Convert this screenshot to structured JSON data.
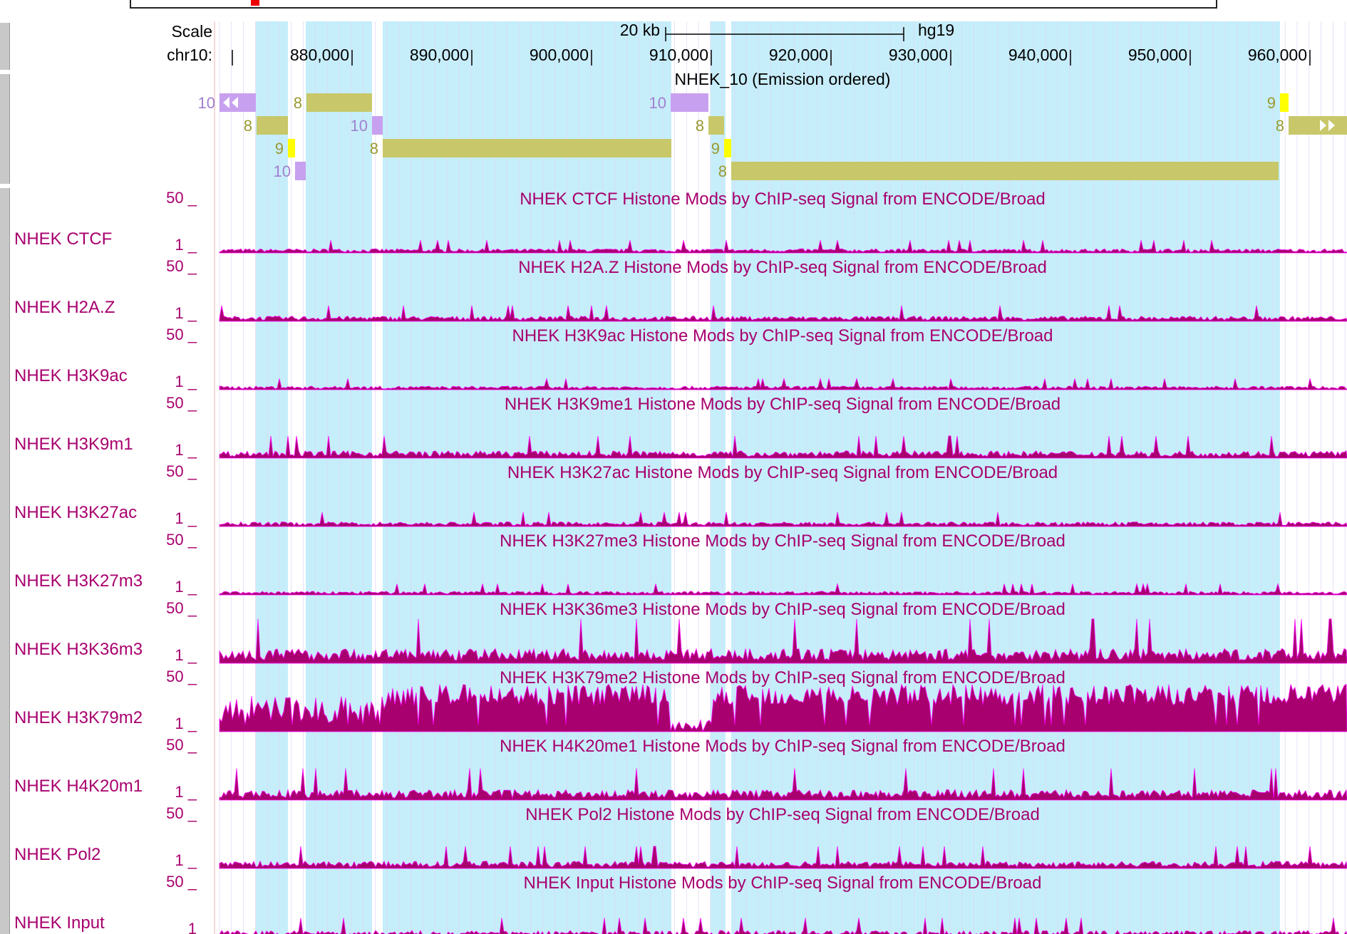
{
  "header": {
    "scale_label": "Scale",
    "chrom_label": "chr10:",
    "scale_bar_text": "20 kb",
    "assembly": "hg19"
  },
  "ruler": {
    "ticks": [
      "880,000",
      "890,000",
      "900,000",
      "910,000",
      "920,000",
      "930,000",
      "940,000",
      "950,000",
      "960,000"
    ]
  },
  "hmm": {
    "title": "NHEK_10 (Emission ordered)",
    "states": [
      {
        "label": "10",
        "row": 0
      },
      {
        "label": "8",
        "row": 0
      },
      {
        "label": "10",
        "row": 0
      },
      {
        "label": "9",
        "row": 0
      },
      {
        "label": "8",
        "row": 1
      },
      {
        "label": "10",
        "row": 1
      },
      {
        "label": "8",
        "row": 1
      },
      {
        "label": "8",
        "row": 1
      },
      {
        "label": "9",
        "row": 2
      },
      {
        "label": "8",
        "row": 2
      },
      {
        "label": "9",
        "row": 2
      },
      {
        "label": "10",
        "row": 3
      },
      {
        "label": "8",
        "row": 3
      }
    ]
  },
  "tracks": [
    {
      "label": "NHEK CTCF",
      "title": "NHEK CTCF Histone Mods by ChIP-seq Signal from ENCODE/Broad",
      "max": "50 _",
      "min": "1 _",
      "level": 0.08
    },
    {
      "label": "NHEK H2A.Z",
      "title": "NHEK H2A.Z Histone Mods by ChIP-seq Signal from ENCODE/Broad",
      "max": "50 _",
      "min": "1 _",
      "level": 0.1
    },
    {
      "label": "NHEK H3K9ac",
      "title": "NHEK H3K9ac Histone Mods by ChIP-seq Signal from ENCODE/Broad",
      "max": "50 _",
      "min": "1 _",
      "level": 0.07
    },
    {
      "label": "NHEK H3K9m1",
      "title": "NHEK H3K9me1 Histone Mods by ChIP-seq Signal from ENCODE/Broad",
      "max": "50 _",
      "min": "1 _",
      "level": 0.14
    },
    {
      "label": "NHEK H3K27ac",
      "title": "NHEK H3K27ac Histone Mods by ChIP-seq Signal from ENCODE/Broad",
      "max": "50 _",
      "min": "1 _",
      "level": 0.09
    },
    {
      "label": "NHEK H3K27m3",
      "title": "NHEK H3K27me3 Histone Mods by ChIP-seq Signal from ENCODE/Broad",
      "max": "50 _",
      "min": "1 _",
      "level": 0.07
    },
    {
      "label": "NHEK H3K36m3",
      "title": "NHEK H3K36me3 Histone Mods by ChIP-seq Signal from ENCODE/Broad",
      "max": "50 _",
      "min": "1 _",
      "level": 0.28
    },
    {
      "label": "NHEK H3K79m2",
      "title": "NHEK H3K79me2 Histone Mods by ChIP-seq Signal from ENCODE/Broad",
      "max": "50 _",
      "min": "1 _",
      "level": 0.9
    },
    {
      "label": "NHEK H4K20m1",
      "title": "NHEK H4K20me1 Histone Mods by ChIP-seq Signal from ENCODE/Broad",
      "max": "50 _",
      "min": "1 _",
      "level": 0.2
    },
    {
      "label": "NHEK Pol2",
      "title": "NHEK Pol2 Histone Mods by ChIP-seq Signal from ENCODE/Broad",
      "max": "50 _",
      "min": "1 _",
      "level": 0.14
    },
    {
      "label": "NHEK Input",
      "title": "NHEK Input Histone Mods by ChIP-seq Signal from ENCODE/Broad",
      "max": "50 _",
      "min": "1",
      "level": 0.12
    }
  ],
  "colors": {
    "signal": "#a8006e",
    "signal_line": "#ff00ff",
    "highlight": "#c6eefa",
    "state8": "#c8c86a",
    "state9": "#ffff00",
    "state10": "#c8a0f0",
    "grid": "#ddd4f4"
  }
}
